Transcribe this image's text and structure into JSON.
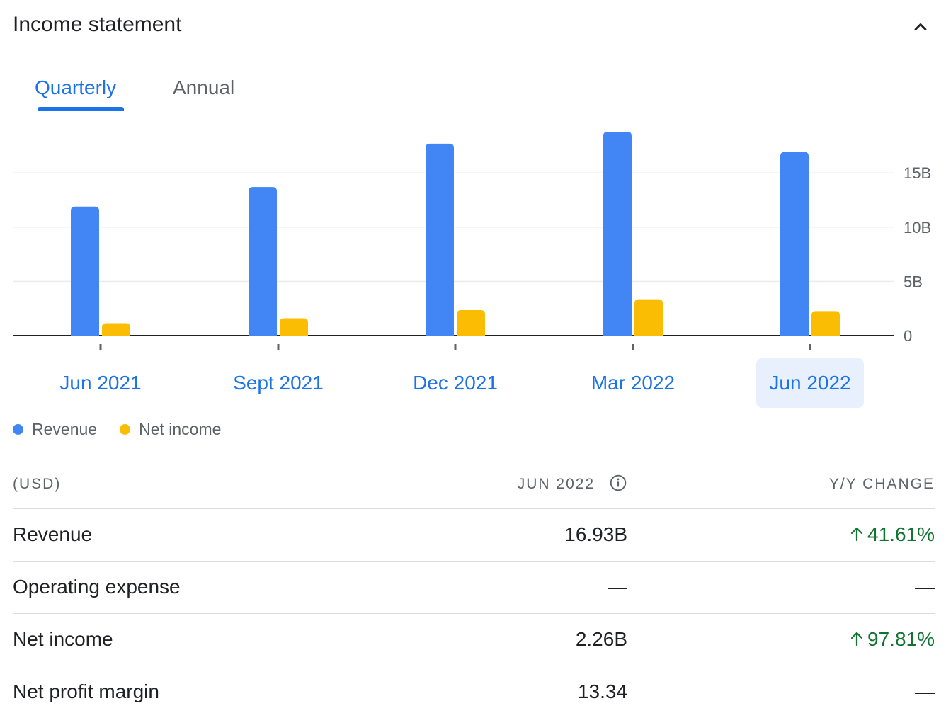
{
  "header": {
    "title": "Income statement",
    "collapse_icon": "chevron-up-icon"
  },
  "tabs": [
    {
      "label": "Quarterly",
      "active": true
    },
    {
      "label": "Annual",
      "active": false
    }
  ],
  "chart_data": {
    "type": "bar",
    "categories": [
      "Jun 2021",
      "Sept 2021",
      "Dec 2021",
      "Mar 2022",
      "Jun 2022"
    ],
    "selected_category": "Jun 2022",
    "series": [
      {
        "name": "Revenue",
        "color": "#4285f4",
        "values": [
          11.9,
          13.7,
          17.7,
          18.8,
          16.93
        ]
      },
      {
        "name": "Net income",
        "color": "#fbbc04",
        "values": [
          1.14,
          1.6,
          2.35,
          3.35,
          2.26
        ]
      }
    ],
    "y_ticks": [
      "0",
      "5B",
      "10B",
      "15B"
    ],
    "y_tick_values": [
      0,
      5,
      10,
      15
    ],
    "ylim": [
      0,
      18.8
    ],
    "legend_position": "bottom-left",
    "grid": true
  },
  "table": {
    "headers": {
      "label": "(USD)",
      "period": "JUN 2022",
      "change": "Y/Y CHANGE"
    },
    "rows": [
      {
        "label": "Revenue",
        "value": "16.93B",
        "change": "41.61%",
        "direction": "up"
      },
      {
        "label": "Operating expense",
        "value": "—",
        "change": "—",
        "direction": "none"
      },
      {
        "label": "Net income",
        "value": "2.26B",
        "change": "97.81%",
        "direction": "up"
      },
      {
        "label": "Net profit margin",
        "value": "13.34",
        "change": "—",
        "direction": "none"
      }
    ]
  }
}
